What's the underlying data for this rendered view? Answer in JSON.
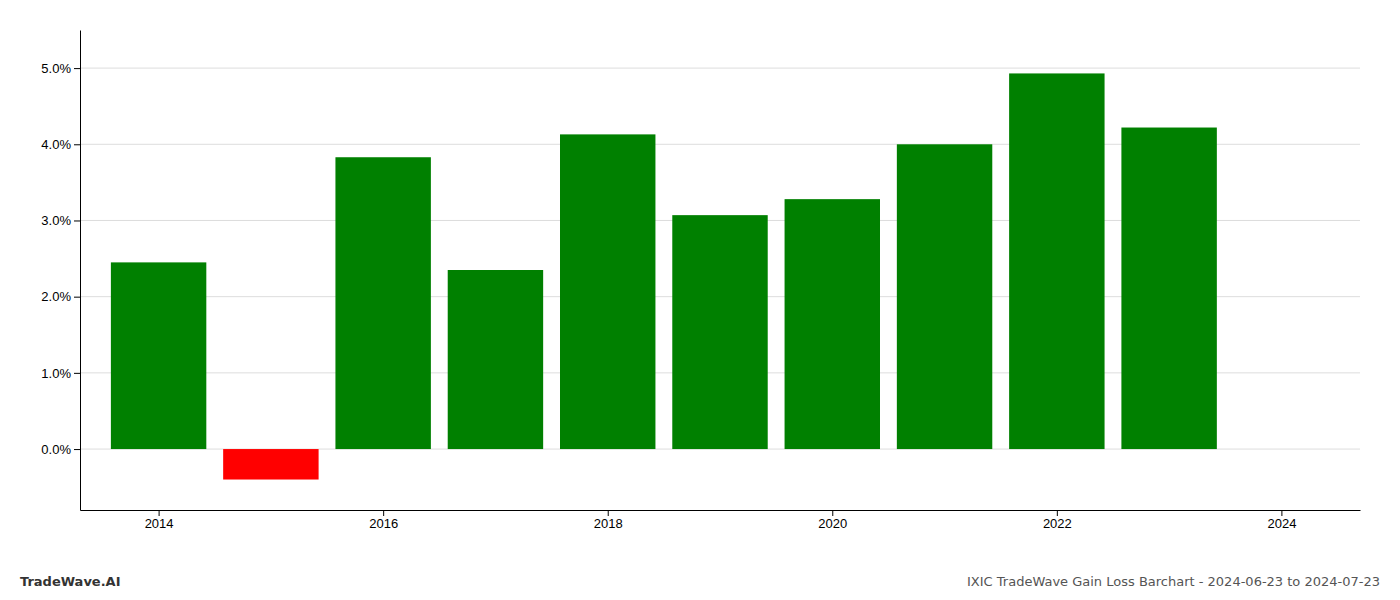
{
  "chart_data": {
    "type": "bar",
    "title": "IXIC TradeWave Gain Loss Barchart - 2024-06-23 to 2024-07-23",
    "annotations": [
      "TradeWave.AI"
    ],
    "x": [
      2014,
      2015,
      2016,
      2017,
      2018,
      2019,
      2020,
      2021,
      2022,
      2023
    ],
    "values": [
      0.0245,
      -0.004,
      0.0383,
      0.0235,
      0.0413,
      0.0307,
      0.0328,
      0.04,
      0.0493,
      0.0422
    ],
    "colors": [
      "#008000",
      "#ff0000",
      "#008000",
      "#008000",
      "#008000",
      "#008000",
      "#008000",
      "#008000",
      "#008000",
      "#008000"
    ],
    "xlim": [
      2013.3,
      2024.7
    ],
    "xticks": [
      2014,
      2016,
      2018,
      2020,
      2022,
      2024
    ],
    "ylim": [
      -0.008,
      0.055
    ],
    "yticks": [
      {
        "value": 0.0,
        "label": "0.0%"
      },
      {
        "value": 0.01,
        "label": "1.0%"
      },
      {
        "value": 0.02,
        "label": "2.0%"
      },
      {
        "value": 0.03,
        "label": "3.0%"
      },
      {
        "value": 0.04,
        "label": "4.0%"
      },
      {
        "value": 0.05,
        "label": "5.0%"
      }
    ],
    "grid": true
  }
}
